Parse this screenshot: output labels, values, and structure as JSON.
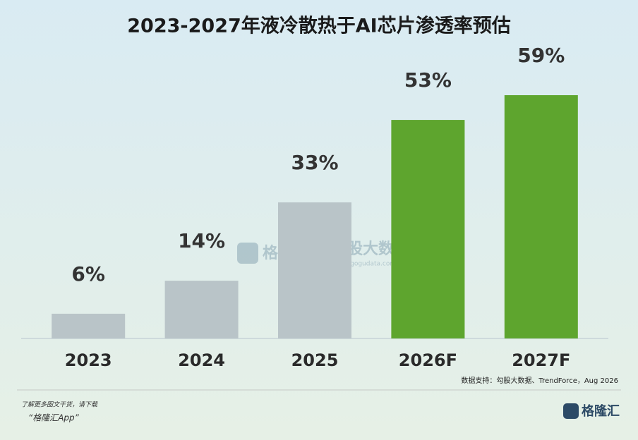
{
  "chart_data": {
    "type": "bar",
    "title": "2023-2027年液冷散热于AI芯片渗透率预估",
    "categories": [
      "2023",
      "2024",
      "2025",
      "2026F",
      "2027F"
    ],
    "values": [
      6,
      14,
      33,
      53,
      59
    ],
    "value_labels": [
      "6%",
      "14%",
      "33%",
      "53%",
      "59%"
    ],
    "colors": [
      "#b9c4c8",
      "#b9c4c8",
      "#b9c4c8",
      "#5ea52e",
      "#5ea52e"
    ],
    "source": "数据支持：勾股大数据、TrendForce，Aug 2026"
  },
  "watermark": {
    "brand": "格隆汇",
    "partner": "勾股大数据",
    "url": "www.gogudata.com"
  },
  "footer": {
    "note": "了解更多图文干货，请下载",
    "app": "“格隆汇App”",
    "logo": "格隆汇"
  }
}
